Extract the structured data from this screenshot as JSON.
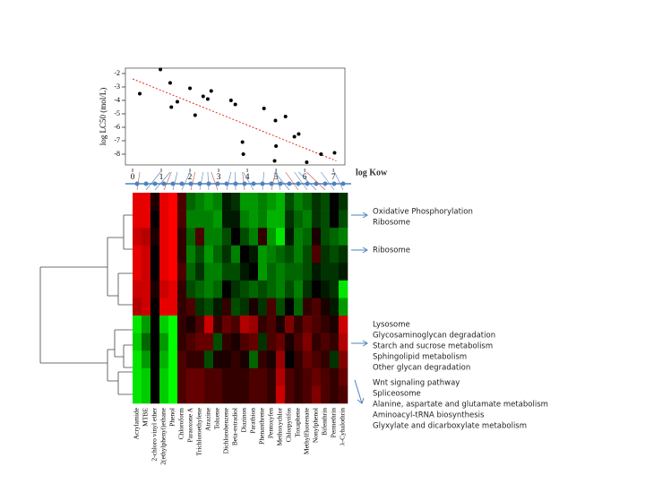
{
  "chart_data": [
    {
      "type": "scatter",
      "ylabel": "log LC50 (mol/L)",
      "xlabel": "log Kow",
      "x": [
        0.25,
        0.97,
        1.31,
        1.35,
        1.56,
        2.0,
        2.18,
        2.46,
        2.62,
        2.74,
        3.43,
        3.58,
        3.83,
        3.86,
        4.58,
        4.98,
        5.0,
        4.95,
        5.33,
        5.64,
        5.79,
        6.07,
        6.57,
        7.04
      ],
      "values": [
        -3.5,
        -1.7,
        -2.7,
        -4.5,
        -4.1,
        -3.1,
        -5.1,
        -3.7,
        -3.9,
        -3.3,
        -4.0,
        -4.3,
        -7.1,
        -8.0,
        -4.6,
        -5.5,
        -7.4,
        -8.5,
        -5.2,
        -6.7,
        -6.5,
        -8.6,
        -8.0,
        -7.9
      ],
      "color": "#000000",
      "trendline": {
        "x": [
          0,
          7.1
        ],
        "values": [
          -2.4,
          -8.5
        ],
        "color": "#e03020"
      },
      "xlim": [
        -0.25,
        7.4
      ],
      "ylim": [
        -8.8,
        -1.6
      ],
      "xticks": [
        0,
        1,
        2,
        3,
        4,
        5,
        6,
        7
      ],
      "yticks": [
        -2,
        -3,
        -4,
        -5,
        -6,
        -7,
        -8
      ]
    },
    {
      "type": "heatmap",
      "low_color": "#00ff00",
      "high_color": "#ff0000",
      "columns": [
        "Acrylamide",
        "MTBE",
        "2-chloro vinyl ether",
        "2(ethylphenyl)ethane",
        "Phenol",
        "Chloroform",
        "Paraoxone A",
        "Trichloroethylene",
        "Atrazine",
        "Toluene",
        "Dichlorobenzene",
        "Beta-estradiol",
        "Diazinon",
        "Parathion",
        "Phenanthrene",
        "Pentoxyfen",
        "Methoxychlor",
        "Chlorpyrifos",
        "Toxaphene",
        "Methylfluorenate",
        "Nonylphenol",
        "Bifenthrin",
        "Permethrin",
        "λ-Cyhalothrin"
      ],
      "values": [
        [
          0.9,
          0.9,
          0.1,
          0.9,
          1,
          0.3,
          -0.4,
          -0.5,
          -0.6,
          -0.5,
          -0.1,
          -0.2,
          -0.6,
          -0.6,
          -0.5,
          -0.6,
          -0.7,
          -0.3,
          -0.5,
          -0.4,
          -0.2,
          -0.3,
          0,
          -0.2
        ],
        [
          0.9,
          0.9,
          0,
          0.9,
          1,
          0.3,
          -0.5,
          -0.5,
          -0.5,
          -0.6,
          -0.1,
          -0.1,
          -0.5,
          -0.6,
          -0.5,
          -0.7,
          -0.7,
          -0.2,
          -0.4,
          -0.5,
          -0.2,
          -0.3,
          0,
          -0.3
        ],
        [
          0.8,
          0.7,
          0.1,
          0.9,
          1,
          0.2,
          -0.4,
          0.3,
          -0.5,
          -0.5,
          -0.3,
          0,
          -0.3,
          -0.5,
          0.2,
          -0.6,
          -0.9,
          -0.1,
          -0.5,
          -0.4,
          0.1,
          -0.3,
          -0.4,
          -0.5
        ],
        [
          0.9,
          0.8,
          0,
          0.9,
          1,
          0.2,
          -0.5,
          -0.3,
          -0.6,
          -0.4,
          -0.2,
          -0.5,
          0,
          -0.1,
          -0.6,
          -0.5,
          -0.4,
          -0.3,
          -0.5,
          -0.3,
          0.3,
          -0.2,
          -0.3,
          -0.2
        ],
        [
          0.9,
          0.8,
          0,
          0.9,
          1,
          0.3,
          -0.4,
          -0.2,
          -0.5,
          -0.5,
          -0.3,
          -0.3,
          -0.1,
          0,
          -0.6,
          -0.4,
          -0.5,
          -0.4,
          -0.4,
          -0.3,
          -0.1,
          -0.2,
          -0.2,
          -0.1
        ],
        [
          0.8,
          0.8,
          0.1,
          0.8,
          0.9,
          0.2,
          -0.3,
          -0.4,
          -0.5,
          -0.4,
          0,
          -0.2,
          -0.3,
          -0.4,
          -0.3,
          -0.4,
          -0.5,
          -0.3,
          -0.5,
          -0.2,
          0,
          -0.1,
          -0.2,
          -0.9
        ],
        [
          0.7,
          0.8,
          0,
          0.9,
          0.9,
          0.2,
          0.3,
          -0.2,
          -0.3,
          -0.1,
          0.2,
          -0.3,
          -0.2,
          0.1,
          -0.2,
          0.3,
          -0.3,
          0,
          -0.4,
          0.2,
          0.3,
          0.1,
          -0.1,
          -0.6
        ],
        [
          -0.9,
          -0.6,
          0,
          -0.8,
          -1,
          0.2,
          0.1,
          0.3,
          0.8,
          0.2,
          0.4,
          0.3,
          0.7,
          0.6,
          0.2,
          0.3,
          0.1,
          0.5,
          0.2,
          0.4,
          0.3,
          0.2,
          0.1,
          0.8
        ],
        [
          -0.8,
          -0.4,
          0,
          -0.6,
          -1,
          0.2,
          0.3,
          0.4,
          0.4,
          -0.3,
          0.2,
          0.1,
          0.3,
          0.4,
          -0.2,
          0.3,
          0.4,
          0.1,
          0.3,
          0.5,
          0.2,
          0.3,
          0.2,
          0.7
        ],
        [
          -0.9,
          -0.6,
          0,
          -0.7,
          -1,
          0.3,
          0.2,
          0.2,
          -0.3,
          0.1,
          0.1,
          0.2,
          0.1,
          -0.4,
          0.2,
          0.1,
          0.6,
          0,
          0.2,
          0.4,
          0.3,
          0.2,
          -0.2,
          0.5
        ],
        [
          -0.9,
          -0.8,
          0,
          -0.8,
          -1,
          0.3,
          0.4,
          0.4,
          0.3,
          0.3,
          0.2,
          0.2,
          0.2,
          0.3,
          0.3,
          0.2,
          0.7,
          0.3,
          0.2,
          0.3,
          0.4,
          0.3,
          0.2,
          0.4
        ],
        [
          -0.9,
          -0.8,
          0,
          -0.8,
          -1,
          0.3,
          0.4,
          0.4,
          0.3,
          0.3,
          0.2,
          0.2,
          0.2,
          0.3,
          0.3,
          0.2,
          0.8,
          0.3,
          0.2,
          0.3,
          0.5,
          0.3,
          0.2,
          0.3
        ]
      ]
    }
  ],
  "annotations": [
    {
      "lines": [
        "Oxidative Phosphorylation",
        "Ribosome"
      ]
    },
    {
      "lines": [
        "Ribosome"
      ]
    },
    {
      "lines": [
        "Lysosome",
        "Glycosaminoglycan degradation",
        "Starch and sucrose metabolism",
        "Sphingolipid metabolism",
        "Other glycan degradation"
      ]
    },
    {
      "lines": [
        "Wnt signaling pathway",
        "Spliceosome",
        "Alanine, aspartate and glutamate metabolism",
        "Aminoacyl-tRNA biosynthesis",
        "Glyxylate and dicarboxylate metabolism"
      ]
    }
  ]
}
